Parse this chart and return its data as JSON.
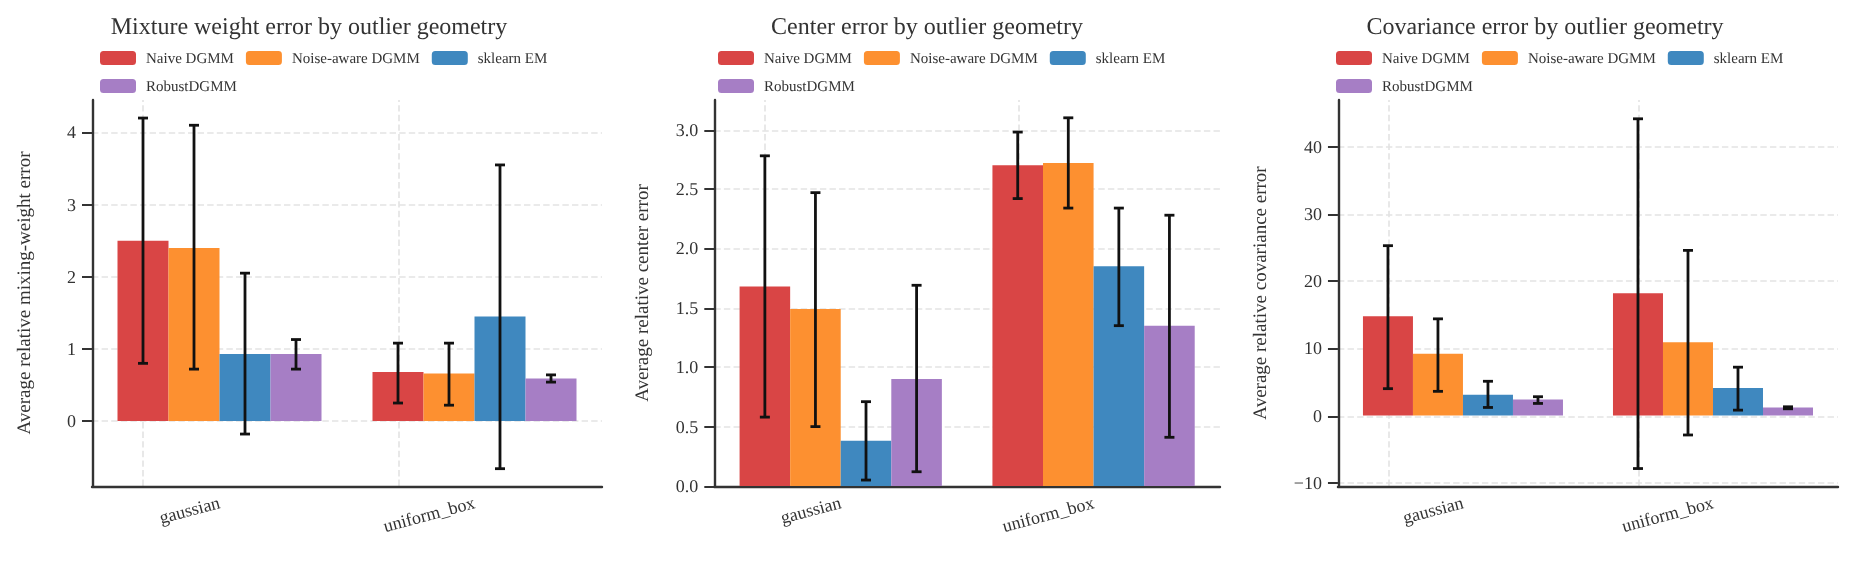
{
  "chart_data": [
    {
      "type": "bar",
      "title": "Mixture weight error by outlier geometry",
      "ylabel": "Average relative mixing-weight error",
      "categories": [
        "gaussian",
        "uniform_box"
      ],
      "ylim": [
        -0.9,
        4.45
      ],
      "yticks": [
        0,
        1,
        2,
        3,
        4
      ],
      "grid": true,
      "legend": "top left",
      "series": [
        {
          "name": "Naive DGMM",
          "color": "#d94545",
          "values": [
            2.5,
            0.68
          ],
          "errors": [
            [
              0.8,
              4.2
            ],
            [
              0.25,
              1.08
            ]
          ]
        },
        {
          "name": "Noise-aware DGMM",
          "color": "#fd9030",
          "values": [
            2.4,
            0.66
          ],
          "errors": [
            [
              0.72,
              4.1
            ],
            [
              0.22,
              1.08
            ]
          ]
        },
        {
          "name": "sklearn EM",
          "color": "#3f88bf",
          "values": [
            0.93,
            1.45
          ],
          "errors": [
            [
              -0.18,
              2.05
            ],
            [
              -0.66,
              3.55
            ]
          ]
        },
        {
          "name": "RobustDGMM",
          "color": "#a67ec5",
          "values": [
            0.93,
            0.59
          ],
          "errors": [
            [
              0.72,
              1.13
            ],
            [
              0.54,
              0.64
            ]
          ]
        }
      ]
    },
    {
      "type": "bar",
      "title": "Center error by outlier geometry",
      "ylabel": "Average relative center error",
      "categories": [
        "gaussian",
        "uniform_box"
      ],
      "ylim": [
        0,
        3.25
      ],
      "yticks": [
        {
          "value": 0,
          "label": "0.0"
        },
        0.5,
        {
          "value": 1,
          "label": "1.0"
        },
        1.5,
        {
          "value": 2,
          "label": "2.0"
        },
        2.5,
        {
          "value": 3,
          "label": "3.0"
        }
      ],
      "grid": true,
      "legend": "top left",
      "series": [
        {
          "name": "Naive DGMM",
          "color": "#d94545",
          "values": [
            1.68,
            2.7
          ],
          "errors": [
            [
              0.58,
              2.78
            ],
            [
              2.42,
              2.98
            ]
          ]
        },
        {
          "name": "Noise-aware DGMM",
          "color": "#fd9030",
          "values": [
            1.49,
            2.72
          ],
          "errors": [
            [
              0.5,
              2.47
            ],
            [
              2.34,
              3.1
            ]
          ]
        },
        {
          "name": "sklearn EM",
          "color": "#3f88bf",
          "values": [
            0.38,
            1.85
          ],
          "errors": [
            [
              0.05,
              0.71
            ],
            [
              1.35,
              2.34
            ]
          ]
        },
        {
          "name": "RobustDGMM",
          "color": "#a67ec5",
          "values": [
            0.9,
            1.35
          ],
          "errors": [
            [
              0.12,
              1.69
            ],
            [
              0.41,
              2.28
            ]
          ]
        }
      ]
    },
    {
      "type": "bar",
      "title": "Covariance error by outlier geometry",
      "ylabel": "Average relative covariance error",
      "categories": [
        "gaussian",
        "uniform_box"
      ],
      "ylim": [
        -10.5,
        47
      ],
      "yticks": [
        {
          "value": -10,
          "label": "−10"
        },
        0,
        10,
        20,
        30,
        40
      ],
      "grid": true,
      "legend": "top left",
      "series": [
        {
          "name": "Naive DGMM",
          "color": "#d94545",
          "values": [
            14.8,
            18.2
          ],
          "errors": [
            [
              4,
              25.3
            ],
            [
              -7.9,
              44.2
            ]
          ]
        },
        {
          "name": "Noise-aware DGMM",
          "color": "#fd9030",
          "values": [
            9.2,
            10.9
          ],
          "errors": [
            [
              3.6,
              14.4
            ],
            [
              -2.9,
              24.6
            ]
          ]
        },
        {
          "name": "sklearn EM",
          "color": "#3f88bf",
          "values": [
            3.1,
            4.1
          ],
          "errors": [
            [
              1.2,
              5.1
            ],
            [
              0.8,
              7.2
            ]
          ]
        },
        {
          "name": "RobustDGMM",
          "color": "#a67ec5",
          "values": [
            2.4,
            1.2
          ],
          "errors": [
            [
              1.8,
              2.8
            ],
            [
              1,
              1.3
            ]
          ]
        }
      ]
    }
  ]
}
